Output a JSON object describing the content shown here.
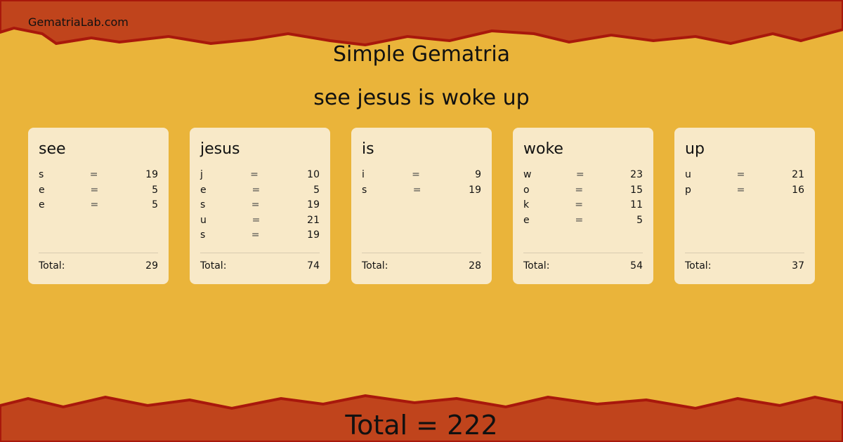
{
  "site": "GematriaLab.com",
  "title": "Simple Gematria",
  "phrase": "see jesus is woke up",
  "total_label": "Total:",
  "colors": {
    "background": "#eab43a",
    "band": "#c0441c",
    "band_edge": "#a8180c",
    "card": "#f8e9c8"
  },
  "words": [
    {
      "word": "see",
      "letters": [
        [
          "s",
          "=",
          "19"
        ],
        [
          "e",
          "=",
          "5"
        ],
        [
          "e",
          "=",
          "5"
        ]
      ],
      "total": "29"
    },
    {
      "word": "jesus",
      "letters": [
        [
          "j",
          "=",
          "10"
        ],
        [
          "e",
          "=",
          "5"
        ],
        [
          "s",
          "=",
          "19"
        ],
        [
          "u",
          "=",
          "21"
        ],
        [
          "s",
          "=",
          "19"
        ]
      ],
      "total": "74"
    },
    {
      "word": "is",
      "letters": [
        [
          "i",
          "=",
          "9"
        ],
        [
          "s",
          "=",
          "19"
        ]
      ],
      "total": "28"
    },
    {
      "word": "woke",
      "letters": [
        [
          "w",
          "=",
          "23"
        ],
        [
          "o",
          "=",
          "15"
        ],
        [
          "k",
          "=",
          "11"
        ],
        [
          "e",
          "=",
          "5"
        ]
      ],
      "total": "54"
    },
    {
      "word": "up",
      "letters": [
        [
          "u",
          "=",
          "21"
        ],
        [
          "p",
          "=",
          "16"
        ]
      ],
      "total": "37"
    }
  ],
  "grand_total": "Total = 222"
}
